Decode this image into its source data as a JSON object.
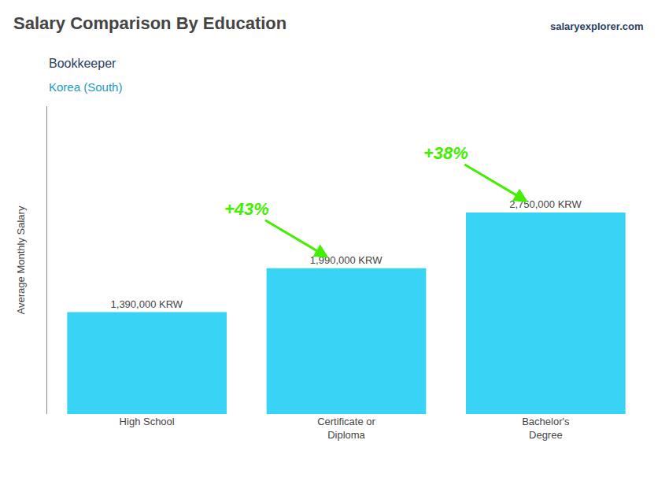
{
  "chart_data": {
    "type": "bar",
    "title": "Salary Comparison By Education",
    "subtitle": [
      "Bookkeeper",
      "Korea (South)"
    ],
    "ylabel": "Average Monthly Salary",
    "categories": [
      "High School",
      "Certificate or\nDiploma",
      "Bachelor's\nDegree"
    ],
    "values": [
      1390000,
      1990000,
      2750000
    ],
    "value_labels": [
      "1,390,000 KRW",
      "1,990,000 KRW",
      "2,750,000 KRW"
    ],
    "data_labels": true,
    "color": "#39d4f5",
    "ylim": [
      0,
      4200000
    ],
    "grid": false,
    "tick_labels": "x",
    "annotations": [
      {
        "text": "+43%",
        "between": [
          0,
          1
        ],
        "color": "#44ee00"
      },
      {
        "text": "+38%",
        "between": [
          1,
          2
        ],
        "color": "#44ee00"
      },
      {
        "text": "salaryexplorer.com"
      }
    ]
  }
}
